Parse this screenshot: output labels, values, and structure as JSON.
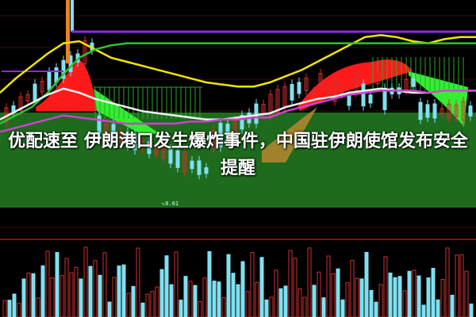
{
  "headline": "优配速至 伊朗港口发生爆炸事件，中国驻伊朗使馆发布安全提醒",
  "colors": {
    "background": "#000000",
    "band": "#1e6b1e",
    "ma_yellow": "#f2e600",
    "ma_green": "#2fc42f",
    "ma_purple": "#8a2be2",
    "ma_white": "#f0f0f0",
    "ma_magenta": "#d040d0",
    "fill_up": "#ff1a1a",
    "fill_down": "#33ee33",
    "candle_up": "#d03030",
    "candle_down": "#7fe0f0",
    "volume_line": "#c01010"
  },
  "chart_data": {
    "type": "line",
    "title": "",
    "x": [
      0,
      1,
      2,
      3,
      4,
      5,
      6,
      7,
      8,
      9,
      10,
      11,
      12,
      13,
      14,
      15,
      16,
      17,
      18,
      19,
      20,
      21,
      22,
      23,
      24,
      25,
      26,
      27,
      28,
      29,
      30
    ],
    "series": [
      {
        "key": "yellow",
        "values": [
          55,
          62,
          68,
          74,
          79,
          80,
          76,
          72,
          70,
          68,
          66,
          64,
          62,
          60,
          59,
          58,
          58,
          60,
          63,
          66,
          70,
          74,
          78,
          82,
          83,
          82,
          80,
          79,
          81,
          82,
          82
        ]
      },
      {
        "key": "green",
        "values": [
          40,
          44,
          48,
          55,
          64,
          72,
          76,
          78,
          79,
          79,
          79,
          79,
          79,
          79,
          79,
          79,
          79,
          79,
          79,
          79,
          79,
          79,
          79,
          79,
          79,
          79,
          79,
          79,
          79,
          79,
          79
        ]
      },
      {
        "key": "white",
        "values": [
          42,
          46,
          50,
          54,
          57,
          55,
          52,
          50,
          48,
          46,
          45,
          44,
          43,
          42,
          42,
          43,
          44,
          45,
          48,
          50,
          52,
          53,
          55,
          56,
          57,
          56,
          55,
          55,
          56,
          56,
          56
        ]
      },
      {
        "key": "magenta",
        "values": [
          36,
          38,
          40,
          42,
          44,
          43,
          42,
          41,
          40,
          40,
          40,
          40,
          41,
          41,
          42,
          42,
          43,
          43,
          46,
          48,
          50,
          52,
          54,
          55,
          56,
          56,
          56,
          55,
          56,
          56,
          56
        ]
      }
    ],
    "annotations": [
      "8.01"
    ]
  }
}
